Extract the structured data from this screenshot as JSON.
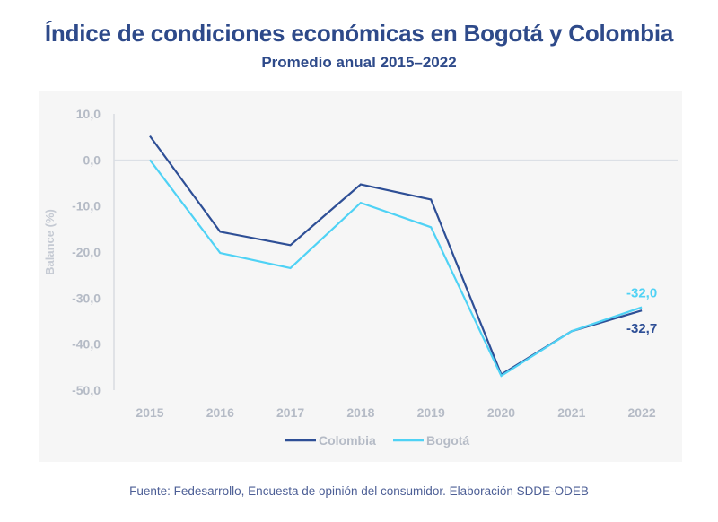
{
  "chart_data": {
    "type": "line",
    "title": "Índice de condiciones económicas en Bogotá y Colombia",
    "subtitle": "Promedio anual 2015–2022",
    "xlabel": "",
    "ylabel": "Balance (%)",
    "x": [
      "2015",
      "2016",
      "2017",
      "2018",
      "2019",
      "2020",
      "2021",
      "2022"
    ],
    "ylim": [
      -50,
      10
    ],
    "yticks": [
      10,
      0,
      -10,
      -20,
      -30,
      -40,
      -50
    ],
    "ytick_labels": [
      "10,0",
      "0,0",
      "-10,0",
      "-20,0",
      "-30,0",
      "-40,0",
      "-50,0"
    ],
    "grid": "zero-line only",
    "legend": "bottom-center",
    "series": [
      {
        "name": "Colombia",
        "color": "#2e4f96",
        "values": [
          5.2,
          -15.6,
          -18.5,
          -5.3,
          -8.6,
          -46.6,
          -37.2,
          -32.7
        ]
      },
      {
        "name": "Bogotá",
        "color": "#4fd2f5",
        "values": [
          0.0,
          -20.2,
          -23.5,
          -9.3,
          -14.6,
          -46.9,
          -37.2,
          -32.0
        ]
      }
    ],
    "annotations": [
      {
        "series": "Bogotá",
        "x": "2022",
        "text": "-32,0"
      },
      {
        "series": "Colombia",
        "x": "2022",
        "text": "-32,7"
      }
    ]
  },
  "source": "Fuente: Fedesarrollo, Encuesta de opinión del consumidor. Elaboración SDDE-ODEB"
}
